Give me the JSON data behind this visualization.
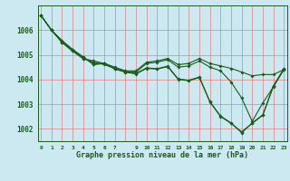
{
  "title": "Graphe pression niveau de la mer (hPa)",
  "bg_color": "#cce8f0",
  "grid_color": "#e08080",
  "line_color": "#1a5c1a",
  "marker": "D",
  "marker_size": 1.8,
  "line_width": 0.8,
  "xlim": [
    -0.3,
    23.3
  ],
  "ylim": [
    1001.5,
    1007.0
  ],
  "yticks": [
    1002,
    1003,
    1004,
    1005,
    1006
  ],
  "xtick_labels": [
    "0",
    "1",
    "2",
    "3",
    "4",
    "5",
    "6",
    "7",
    "",
    "9",
    "10",
    "11",
    "12",
    "13",
    "14",
    "15",
    "16",
    "17",
    "18",
    "19",
    "20",
    "21",
    "22",
    "23"
  ],
  "series": [
    [
      1006.6,
      1006.0,
      1005.5,
      1005.15,
      1004.85,
      1004.75,
      1004.65,
      1004.5,
      1004.35,
      1004.35,
      1004.7,
      1004.75,
      1004.85,
      1004.6,
      1004.65,
      1004.85,
      1004.65,
      1004.55,
      1004.45,
      1004.3,
      1004.15,
      1004.2,
      1004.2,
      1004.4
    ],
    [
      1006.6,
      1006.0,
      1005.5,
      1005.15,
      1004.85,
      1004.7,
      1004.6,
      1004.45,
      1004.3,
      1004.3,
      1004.65,
      1004.7,
      1004.8,
      1004.5,
      1004.55,
      1004.75,
      1004.5,
      1004.35,
      1003.9,
      1003.25,
      1002.3,
      1003.05,
      1003.7,
      1004.4
    ],
    [
      1006.6,
      1006.0,
      1005.55,
      1005.2,
      1004.9,
      1004.6,
      1004.65,
      1004.42,
      1004.3,
      1004.22,
      1004.45,
      1004.42,
      1004.52,
      1004.0,
      1003.95,
      1004.08,
      1003.08,
      1002.5,
      1002.22,
      1001.88,
      1002.22,
      1002.55,
      1003.72,
      1004.42
    ],
    [
      1006.6,
      1006.0,
      1005.58,
      1005.22,
      1004.92,
      1004.62,
      1004.67,
      1004.44,
      1004.32,
      1004.24,
      1004.47,
      1004.44,
      1004.54,
      1004.02,
      1003.97,
      1004.1,
      1003.1,
      1002.52,
      1002.24,
      1001.84,
      1002.24,
      1002.57,
      1003.74,
      1004.44
    ]
  ]
}
